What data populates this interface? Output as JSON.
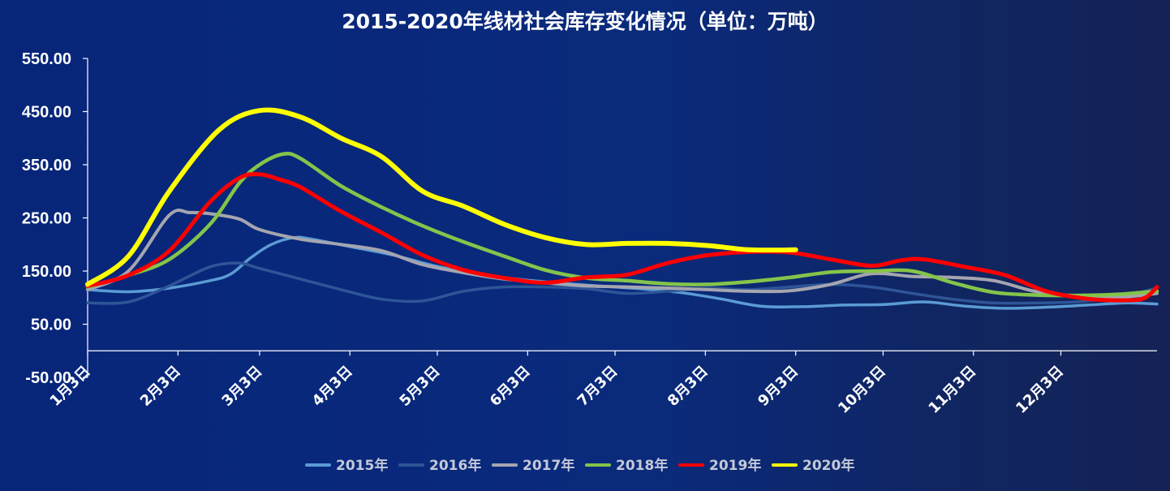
{
  "chart_data": {
    "type": "line",
    "title": "2015-2020年线材社会库存变化情况（单位：万吨）",
    "xlabel": "",
    "ylabel": "",
    "ylim": [
      -50,
      550
    ],
    "yticks": [
      "550.00",
      "450.00",
      "350.00",
      "250.00",
      "150.00",
      "50.00",
      "-50.00"
    ],
    "ytick_values": [
      550,
      450,
      350,
      250,
      150,
      50,
      -50
    ],
    "x_unit": "day of year",
    "xlim": [
      3,
      370
    ],
    "xticks": [
      "1月3日",
      "2月3日",
      "3月3日",
      "4月3日",
      "5月3日",
      "6月3日",
      "7月3日",
      "8月3日",
      "9月3日",
      "10月3日",
      "11月3日",
      "12月3日"
    ],
    "xtick_values": [
      3,
      34,
      62,
      93,
      123,
      154,
      184,
      215,
      246,
      276,
      307,
      337
    ],
    "grid": false,
    "legend_position": "bottom",
    "series": [
      {
        "name": "2015年",
        "color": "#5b9bd5",
        "width": 3.5,
        "x": [
          3,
          17,
          31,
          45,
          52,
          59,
          66,
          74,
          80,
          94,
          108,
          122,
          136,
          150,
          164,
          178,
          192,
          206,
          220,
          234,
          248,
          262,
          276,
          290,
          304,
          318,
          332,
          346,
          360,
          370
        ],
        "y": [
          115,
          111,
          118,
          132,
          144,
          175,
          200,
          213,
          210,
          195,
          180,
          160,
          145,
          135,
          128,
          122,
          117,
          110,
          98,
          84,
          83,
          86,
          87,
          92,
          84,
          80,
          82,
          86,
          90,
          88
        ]
      },
      {
        "name": "2016年",
        "color": "#2e5597",
        "width": 3.5,
        "x": [
          3,
          17,
          31,
          45,
          55,
          62,
          76,
          90,
          104,
          118,
          132,
          146,
          160,
          174,
          188,
          202,
          216,
          230,
          244,
          258,
          272,
          286,
          300,
          314,
          328,
          342,
          356,
          370
        ],
        "y": [
          90,
          92,
          122,
          158,
          165,
          155,
          135,
          115,
          97,
          94,
          112,
          120,
          120,
          117,
          108,
          112,
          118,
          115,
          120,
          125,
          120,
          108,
          97,
          90,
          90,
          92,
          100,
          118
        ]
      },
      {
        "name": "2017年",
        "color": "#a5a5b0",
        "width": 4,
        "x": [
          3,
          17,
          31,
          38,
          45,
          55,
          62,
          76,
          90,
          104,
          118,
          132,
          146,
          160,
          174,
          188,
          202,
          216,
          230,
          244,
          258,
          272,
          286,
          300,
          314,
          328,
          342,
          356,
          370
        ],
        "y": [
          115,
          150,
          255,
          260,
          258,
          248,
          228,
          210,
          200,
          188,
          162,
          147,
          135,
          128,
          122,
          120,
          118,
          115,
          112,
          113,
          125,
          145,
          140,
          138,
          132,
          112,
          103,
          100,
          108
        ]
      },
      {
        "name": "2018年",
        "color": "#84c44a",
        "width": 4.5,
        "x": [
          3,
          17,
          31,
          45,
          55,
          62,
          70,
          76,
          90,
          104,
          118,
          132,
          146,
          160,
          174,
          188,
          202,
          216,
          230,
          244,
          258,
          272,
          286,
          300,
          314,
          328,
          342,
          356,
          370
        ],
        "y": [
          120,
          142,
          172,
          238,
          315,
          350,
          370,
          362,
          310,
          270,
          235,
          205,
          178,
          152,
          137,
          132,
          126,
          125,
          130,
          138,
          148,
          150,
          150,
          128,
          110,
          105,
          104,
          106,
          112
        ]
      },
      {
        "name": "2019年",
        "color": "#ff0000",
        "width": 5,
        "x": [
          3,
          17,
          31,
          45,
          55,
          62,
          69,
          76,
          90,
          104,
          118,
          132,
          146,
          160,
          174,
          188,
          202,
          216,
          230,
          244,
          258,
          272,
          282,
          290,
          304,
          318,
          332,
          346,
          360,
          366,
          370
        ],
        "y": [
          122,
          142,
          188,
          280,
          325,
          332,
          322,
          308,
          262,
          222,
          180,
          152,
          137,
          128,
          138,
          143,
          165,
          180,
          186,
          185,
          172,
          160,
          170,
          172,
          158,
          142,
          112,
          98,
          95,
          100,
          120
        ]
      },
      {
        "name": "2020年",
        "color": "#ffff00",
        "width": 6,
        "x": [
          3,
          17,
          31,
          48,
          62,
          76,
          90,
          104,
          118,
          132,
          146,
          160,
          174,
          188,
          202,
          216,
          230,
          246
        ],
        "y": [
          125,
          178,
          300,
          415,
          452,
          440,
          400,
          365,
          300,
          272,
          238,
          213,
          200,
          202,
          202,
          198,
          190,
          190
        ]
      }
    ]
  }
}
